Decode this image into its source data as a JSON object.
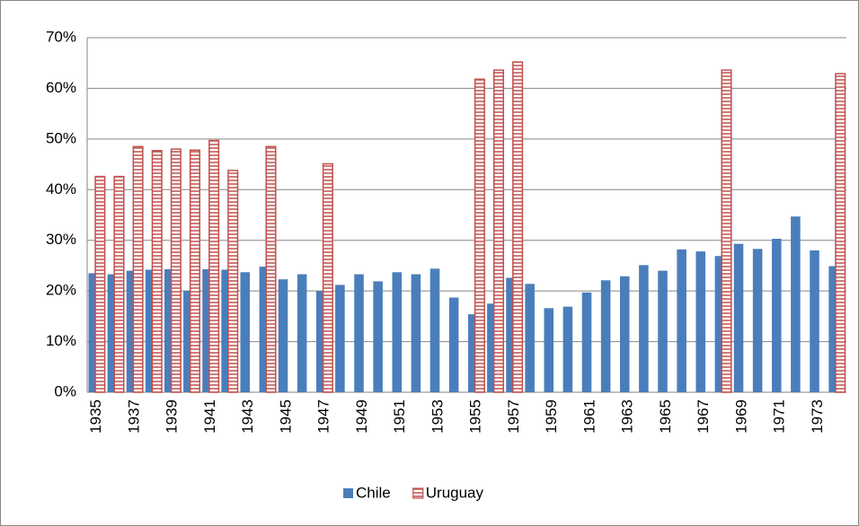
{
  "chart_data": {
    "type": "bar",
    "categories": [
      "1935",
      null,
      "1937",
      null,
      "1939",
      null,
      "1941",
      null,
      "1943",
      null,
      "1945",
      null,
      "1947",
      null,
      "1949",
      null,
      "1951",
      null,
      "1953",
      null,
      "1955",
      null,
      "1957",
      null,
      "1959",
      null,
      "1961",
      null,
      "1963",
      null,
      "1965",
      null,
      "1967",
      null,
      "1969",
      null,
      "1971",
      null,
      "1973",
      null
    ],
    "series": [
      {
        "name": "Chile",
        "color": "#4a7ebb",
        "values": [
          23.5,
          23.3,
          24,
          24.2,
          24.3,
          20,
          24.3,
          24.2,
          23.7,
          24.8,
          22.3,
          23.3,
          20,
          21.2,
          23.3,
          21.9,
          23.7,
          23.3,
          24.4,
          18.7,
          15.4,
          17.5,
          22.6,
          21.4,
          16.6,
          16.9,
          19.7,
          22.1,
          22.9,
          25.1,
          24,
          28.2,
          27.8,
          26.9,
          29.3,
          28.3,
          30.3,
          34.7,
          28,
          24.9
        ]
      },
      {
        "name": "Uruguay",
        "color": "#c0504d",
        "values": [
          42.6,
          42.6,
          48.5,
          47.7,
          48,
          47.8,
          49.7,
          43.8,
          null,
          48.5,
          null,
          null,
          45.1,
          null,
          null,
          null,
          null,
          null,
          null,
          null,
          61.8,
          63.6,
          65.2,
          null,
          null,
          null,
          null,
          null,
          null,
          null,
          null,
          null,
          null,
          63.6,
          null,
          null,
          null,
          null,
          null,
          62.9
        ]
      }
    ],
    "ylim": [
      0,
      70
    ],
    "yticks": [
      {
        "value": 0,
        "label": "0%"
      },
      {
        "value": 10,
        "label": "10%"
      },
      {
        "value": 20,
        "label": "20%"
      },
      {
        "value": 30,
        "label": "30%"
      },
      {
        "value": 40,
        "label": "40%"
      },
      {
        "value": 50,
        "label": "50%"
      },
      {
        "value": 60,
        "label": "60%"
      },
      {
        "value": 70,
        "label": "70%"
      }
    ],
    "grid": true,
    "legend": "bottom"
  }
}
